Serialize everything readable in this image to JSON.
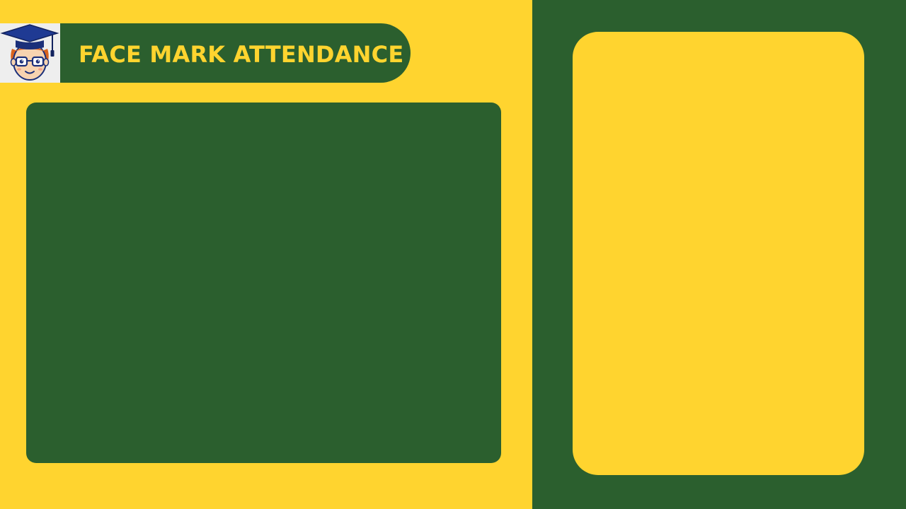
{
  "header": {
    "title": "FACE MARK ATTENDANCE",
    "logo_icon": "student-graduate-avatar-icon"
  },
  "colors": {
    "primary_yellow": "#FFD42F",
    "primary_green": "#2B5F2E",
    "logo_background": "#EEEEEE",
    "cap_navy": "#1B2F7A"
  }
}
